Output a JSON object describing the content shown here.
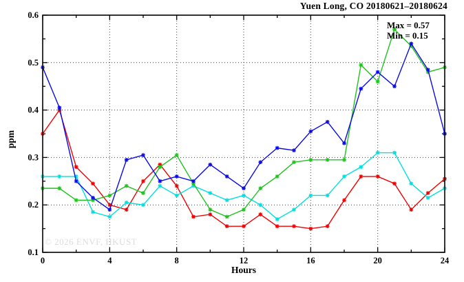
{
  "chart_data": {
    "type": "line",
    "title": "Yuen Long, CO 20180621–20180624",
    "annotation": {
      "max_label": "Max = 0.57",
      "min_label": "Min = 0.15"
    },
    "watermark": "© 2026 ENVF, HKUST",
    "xlabel": "Hours",
    "ylabel": "ppm",
    "xlim": [
      0,
      24
    ],
    "ylim": [
      0.1,
      0.6
    ],
    "x_major_ticks": [
      0,
      4,
      8,
      12,
      16,
      20,
      24
    ],
    "x_minor_step": 2,
    "y_major_ticks": [
      0.1,
      0.2,
      0.3,
      0.4,
      0.5,
      0.6
    ],
    "y_minor_step": 0.05,
    "grid_x": [
      4,
      8,
      12,
      16,
      20
    ],
    "grid_y": [
      0.2,
      0.3,
      0.4,
      0.5
    ],
    "x": [
      0,
      1,
      2,
      3,
      4,
      5,
      6,
      7,
      8,
      9,
      10,
      11,
      12,
      13,
      14,
      15,
      16,
      17,
      18,
      19,
      20,
      21,
      22,
      23,
      24
    ],
    "legend_position": "none",
    "grid": "dotted",
    "series": [
      {
        "name": "series-red",
        "color": "#EE0000",
        "values": [
          0.35,
          0.4,
          0.28,
          0.245,
          0.2,
          0.19,
          0.25,
          0.285,
          0.24,
          0.175,
          0.18,
          0.155,
          0.155,
          0.18,
          0.155,
          0.155,
          0.15,
          0.155,
          0.21,
          0.26,
          0.26,
          0.245,
          0.19,
          0.225,
          0.255
        ]
      },
      {
        "name": "series-cyan",
        "color": "#00DFDF",
        "values": [
          0.26,
          0.26,
          0.26,
          0.185,
          0.175,
          0.205,
          0.2,
          0.24,
          0.22,
          0.24,
          0.225,
          0.21,
          0.22,
          0.2,
          0.17,
          0.19,
          0.22,
          0.22,
          0.26,
          0.28,
          0.31,
          0.31,
          0.245,
          0.215,
          0.235
        ]
      },
      {
        "name": "series-green",
        "color": "#1FC21F",
        "values": [
          0.235,
          0.235,
          0.21,
          0.21,
          0.22,
          0.24,
          0.225,
          0.28,
          0.305,
          0.245,
          0.19,
          0.175,
          0.19,
          0.235,
          0.26,
          0.29,
          0.295,
          0.295,
          0.295,
          0.495,
          0.46,
          0.57,
          0.535,
          0.48,
          0.49
        ]
      },
      {
        "name": "series-blue",
        "color": "#0A0AE6",
        "values": [
          0.49,
          0.405,
          0.25,
          0.215,
          0.19,
          0.295,
          0.305,
          0.25,
          0.26,
          0.25,
          0.285,
          0.26,
          0.235,
          0.29,
          0.32,
          0.315,
          0.355,
          0.375,
          0.33,
          0.445,
          0.48,
          0.45,
          0.54,
          0.485,
          0.35
        ]
      }
    ]
  }
}
